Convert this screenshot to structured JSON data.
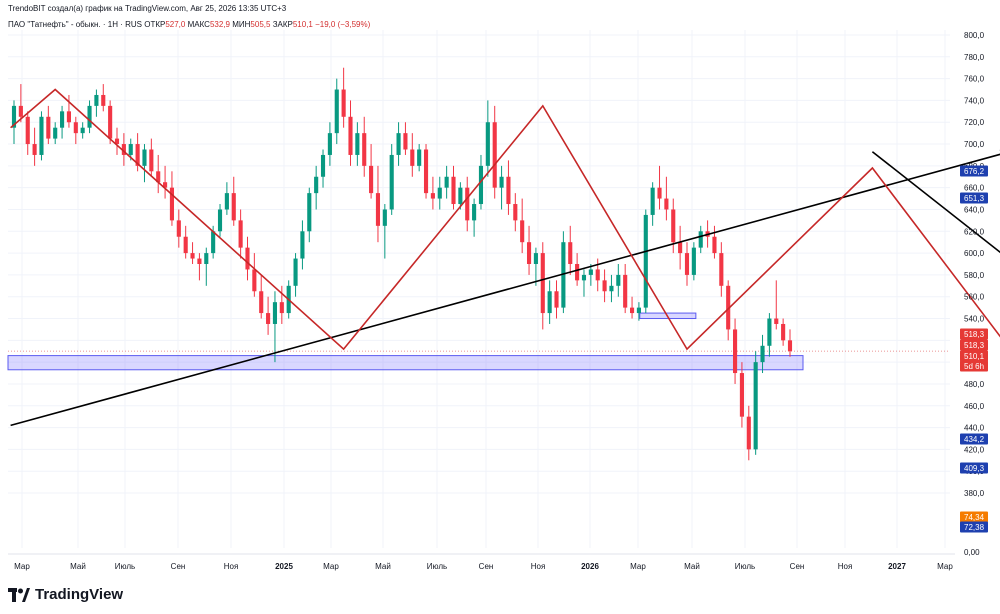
{
  "header": {
    "attribution": "TrendoBIT создал(а) график на TradingView.com, Авг 25, 2026 13:35 UTC+3",
    "symbol": "ПАО \"Татнефть\" - обыкн. · 1Н · RUS",
    "o_label": "ОТКР",
    "o_value": "527,0",
    "h_label": "МАКС",
    "h_value": "532,9",
    "l_label": "МИН",
    "l_value": "505,5",
    "c_label": "ЗАКР",
    "c_value": "510,1 −19,0 (−3,59%)"
  },
  "branding": {
    "logo_text": "TradingView"
  },
  "chart_data": {
    "type": "candlestick",
    "title": "",
    "xlabel": "",
    "ylabel": "",
    "ylim": [
      0,
      810
    ],
    "y_tick_labels": [
      "800,0",
      "780,0",
      "760,0",
      "740,0",
      "720,0",
      "700,0",
      "680,0",
      "660,0",
      "640,0",
      "620,0",
      "600,0",
      "580,0",
      "560,0",
      "540,0",
      "520,0",
      "500,0",
      "480,0",
      "460,0",
      "440,0",
      "420,0",
      "400,0",
      "380,0",
      "0,00"
    ],
    "x_tick_labels": [
      "Мар",
      "Май",
      "Июль",
      "Сен",
      "Ноя",
      "2025",
      "Мар",
      "Май",
      "Июль",
      "Сен",
      "Ноя",
      "2026",
      "Мар",
      "Май",
      "Июль",
      "Сен",
      "Ноя",
      "2027",
      "Мар"
    ],
    "price_tags": [
      {
        "value": 676.2,
        "label": "676,2",
        "color": "#1e40af"
      },
      {
        "value": 651.3,
        "label": "651,3",
        "color": "#1e40af"
      },
      {
        "value": 518.3,
        "label": "518,3",
        "color": "#e53935"
      },
      {
        "value": 518.3,
        "label": "518,3",
        "color": "#e53935"
      },
      {
        "value": 510.1,
        "label": "510,1",
        "color": "#e53935"
      },
      {
        "value": 505.5,
        "label": "5d 6h",
        "color": "#e53935"
      },
      {
        "value": 434.2,
        "label": "434,2",
        "color": "#1e40af"
      },
      {
        "value": 409.3,
        "label": "409,3",
        "color": "#1e40af"
      },
      {
        "value": 74.34,
        "label": "74,34",
        "color": "#f57c00"
      },
      {
        "value": 72.38,
        "label": "72,38",
        "color": "#1e40af"
      }
    ],
    "candles": [
      [
        715,
        740,
        700,
        735
      ],
      [
        735,
        755,
        720,
        725
      ],
      [
        725,
        730,
        690,
        700
      ],
      [
        700,
        715,
        680,
        690
      ],
      [
        690,
        730,
        685,
        725
      ],
      [
        725,
        735,
        700,
        705
      ],
      [
        705,
        720,
        700,
        715
      ],
      [
        715,
        735,
        705,
        730
      ],
      [
        730,
        745,
        715,
        720
      ],
      [
        720,
        725,
        700,
        710
      ],
      [
        710,
        720,
        705,
        715
      ],
      [
        715,
        740,
        710,
        735
      ],
      [
        735,
        750,
        725,
        745
      ],
      [
        745,
        755,
        730,
        735
      ],
      [
        735,
        740,
        700,
        705
      ],
      [
        705,
        715,
        690,
        700
      ],
      [
        700,
        710,
        680,
        690
      ],
      [
        690,
        705,
        685,
        700
      ],
      [
        700,
        710,
        675,
        680
      ],
      [
        680,
        700,
        665,
        695
      ],
      [
        695,
        705,
        670,
        675
      ],
      [
        675,
        690,
        655,
        665
      ],
      [
        665,
        680,
        650,
        660
      ],
      [
        660,
        675,
        625,
        630
      ],
      [
        630,
        640,
        605,
        615
      ],
      [
        615,
        625,
        595,
        600
      ],
      [
        600,
        610,
        590,
        595
      ],
      [
        595,
        600,
        575,
        590
      ],
      [
        590,
        605,
        570,
        600
      ],
      [
        600,
        625,
        595,
        620
      ],
      [
        620,
        645,
        615,
        640
      ],
      [
        640,
        665,
        635,
        655
      ],
      [
        655,
        670,
        625,
        630
      ],
      [
        630,
        640,
        595,
        605
      ],
      [
        605,
        615,
        575,
        585
      ],
      [
        585,
        600,
        560,
        565
      ],
      [
        565,
        580,
        540,
        545
      ],
      [
        545,
        560,
        525,
        535
      ],
      [
        535,
        565,
        500,
        555
      ],
      [
        555,
        570,
        535,
        545
      ],
      [
        545,
        575,
        540,
        570
      ],
      [
        570,
        600,
        560,
        595
      ],
      [
        595,
        630,
        585,
        620
      ],
      [
        620,
        660,
        610,
        655
      ],
      [
        655,
        680,
        640,
        670
      ],
      [
        670,
        695,
        660,
        690
      ],
      [
        690,
        720,
        680,
        710
      ],
      [
        710,
        760,
        700,
        750
      ],
      [
        750,
        770,
        715,
        725
      ],
      [
        725,
        740,
        680,
        690
      ],
      [
        690,
        720,
        680,
        710
      ],
      [
        710,
        725,
        670,
        680
      ],
      [
        680,
        700,
        650,
        655
      ],
      [
        655,
        680,
        610,
        625
      ],
      [
        625,
        645,
        595,
        640
      ],
      [
        640,
        700,
        635,
        690
      ],
      [
        690,
        720,
        680,
        710
      ],
      [
        710,
        720,
        690,
        695
      ],
      [
        695,
        710,
        670,
        680
      ],
      [
        680,
        700,
        675,
        695
      ],
      [
        695,
        700,
        650,
        655
      ],
      [
        655,
        670,
        640,
        650
      ],
      [
        650,
        670,
        640,
        660
      ],
      [
        660,
        680,
        650,
        670
      ],
      [
        670,
        680,
        640,
        645
      ],
      [
        645,
        665,
        640,
        660
      ],
      [
        660,
        670,
        620,
        630
      ],
      [
        630,
        650,
        615,
        645
      ],
      [
        645,
        690,
        640,
        680
      ],
      [
        680,
        740,
        670,
        720
      ],
      [
        720,
        735,
        650,
        660
      ],
      [
        660,
        680,
        640,
        670
      ],
      [
        670,
        685,
        635,
        645
      ],
      [
        645,
        655,
        620,
        630
      ],
      [
        630,
        650,
        600,
        610
      ],
      [
        610,
        625,
        580,
        590
      ],
      [
        590,
        605,
        570,
        600
      ],
      [
        600,
        610,
        530,
        545
      ],
      [
        545,
        575,
        535,
        565
      ],
      [
        565,
        575,
        540,
        550
      ],
      [
        550,
        620,
        545,
        610
      ],
      [
        610,
        625,
        580,
        590
      ],
      [
        590,
        600,
        570,
        575
      ],
      [
        575,
        585,
        560,
        580
      ],
      [
        580,
        590,
        570,
        585
      ],
      [
        585,
        595,
        565,
        575
      ],
      [
        575,
        585,
        555,
        565
      ],
      [
        565,
        580,
        555,
        570
      ],
      [
        570,
        590,
        560,
        580
      ],
      [
        580,
        590,
        545,
        550
      ],
      [
        550,
        560,
        540,
        545
      ],
      [
        545,
        555,
        538,
        550
      ],
      [
        550,
        640,
        545,
        635
      ],
      [
        635,
        665,
        625,
        660
      ],
      [
        660,
        680,
        640,
        650
      ],
      [
        650,
        670,
        630,
        640
      ],
      [
        640,
        650,
        600,
        610
      ],
      [
        610,
        625,
        585,
        600
      ],
      [
        600,
        610,
        570,
        580
      ],
      [
        580,
        610,
        575,
        605
      ],
      [
        605,
        625,
        600,
        620
      ],
      [
        620,
        630,
        605,
        615
      ],
      [
        615,
        625,
        595,
        600
      ],
      [
        600,
        610,
        560,
        570
      ],
      [
        570,
        575,
        520,
        530
      ],
      [
        530,
        540,
        480,
        490
      ],
      [
        490,
        500,
        440,
        450
      ],
      [
        450,
        460,
        410,
        420
      ],
      [
        420,
        510,
        415,
        500
      ],
      [
        500,
        525,
        490,
        515
      ],
      [
        515,
        545,
        505,
        540
      ],
      [
        540,
        575,
        530,
        535
      ],
      [
        535,
        540,
        515,
        520
      ],
      [
        520,
        530,
        505,
        510
      ]
    ],
    "zones": [
      {
        "y1": 493,
        "y2": 506
      },
      {
        "y1": 540,
        "y2": 545
      }
    ],
    "trendlines": [
      {
        "name": "ascending-support",
        "color": "#000000",
        "arrow": true,
        "points": [
          [
            -0.5,
            442
          ],
          [
            145,
            693
          ]
        ]
      },
      {
        "name": "descending-resistance",
        "color": "#000000",
        "arrow": true,
        "points": [
          [
            125,
            693
          ],
          [
            171,
            465
          ]
        ]
      },
      {
        "name": "zigzag-path",
        "color": "#c62828",
        "arrow": false,
        "points": [
          [
            -0.5,
            715
          ],
          [
            6,
            750
          ],
          [
            48,
            512
          ],
          [
            77,
            735
          ],
          [
            98,
            512
          ],
          [
            125,
            678
          ],
          [
            145,
            512
          ],
          [
            165,
            384
          ]
        ]
      }
    ]
  }
}
